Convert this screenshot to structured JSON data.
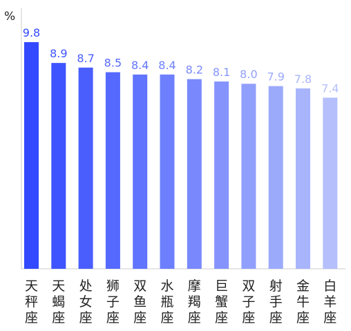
{
  "chart_data": {
    "type": "bar",
    "ylabel": "%",
    "categories": [
      "天秤座",
      "天蝎座",
      "处女座",
      "狮子座",
      "双鱼座",
      "水瓶座",
      "摩羯座",
      "巨蟹座",
      "双子座",
      "射手座",
      "金牛座",
      "白羊座"
    ],
    "values": [
      9.8,
      8.9,
      8.7,
      8.5,
      8.4,
      8.4,
      8.2,
      8.1,
      8.0,
      7.9,
      7.8,
      7.4
    ],
    "value_labels": [
      "9.8",
      "8.9",
      "8.7",
      "8.5",
      "8.4",
      "8.4",
      "8.2",
      "8.1",
      "8.0",
      "7.9",
      "7.8",
      "7.4"
    ],
    "ylim": [
      0,
      10
    ],
    "grid": false,
    "colors": {
      "start": "#3249ff",
      "end": "#b4bffb"
    }
  }
}
